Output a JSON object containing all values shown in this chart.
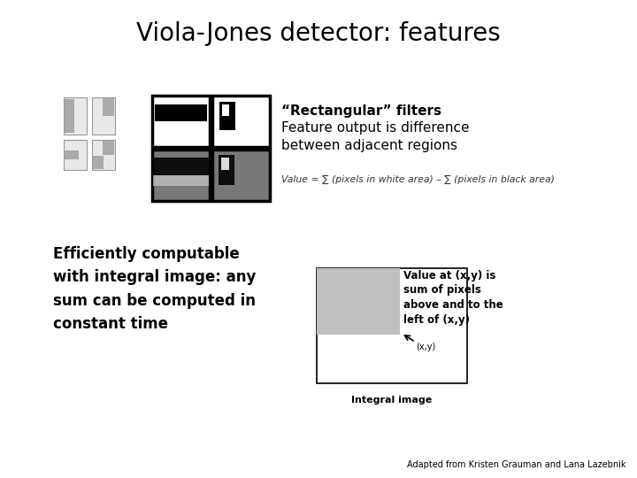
{
  "title": "Viola-Jones detector: features",
  "title_fontsize": 20,
  "background_color": "#ffffff",
  "text_rectangular_filters": "“Rectangular” filters",
  "text_feature_output": "Feature output is difference\nbetween adjacent regions",
  "text_value_formula": "Value = ∑ (pixels in white area) – ∑ (pixels in black area)",
  "text_efficiently": "Efficiently computable\nwith integral image: any\nsum can be computed in\nconstant time",
  "text_value_at": "Value at (x,y) is\nsum of pixels\nabove and to the\nleft of (x,y)",
  "text_integral_image": "Integral image",
  "text_adapted": "Adapted from Kristen Grauman and Lana Lazebnik",
  "text_xy": "(x,y)"
}
